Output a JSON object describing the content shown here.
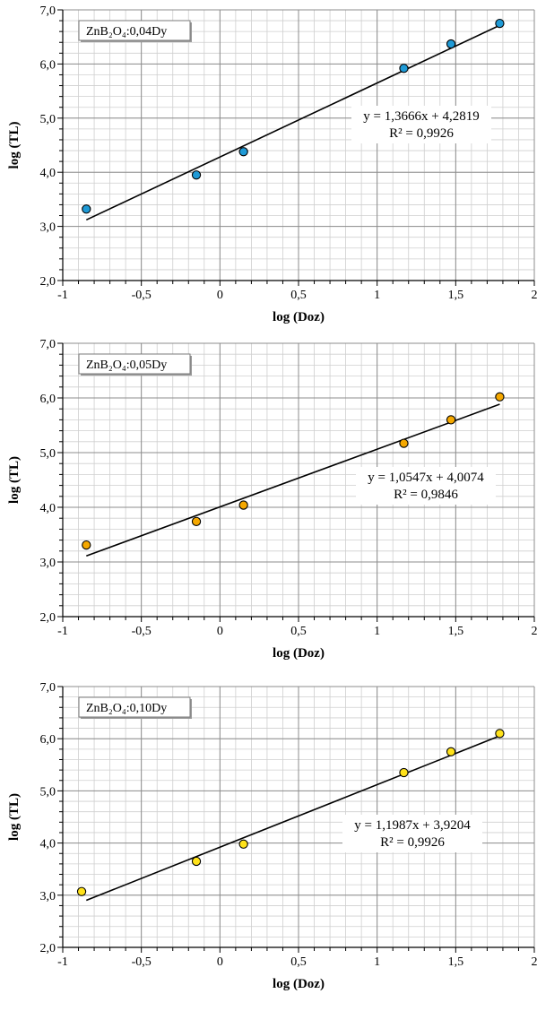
{
  "chart_data": [
    {
      "type": "scatter",
      "title": "",
      "xlabel": "log (Doz)",
      "ylabel": "log (TL)",
      "xlim": [
        -1,
        2
      ],
      "ylim": [
        2.0,
        7.0
      ],
      "x_ticks": [
        "-1",
        "-0,5",
        "0",
        "0,5",
        "1",
        "1,5",
        "2"
      ],
      "y_ticks": [
        "2,0",
        "3,0",
        "4,0",
        "5,0",
        "6,0",
        "7,0"
      ],
      "grid": true,
      "legend": "top-left",
      "series": [
        {
          "name": "ZnB₂O₄:0,04Dy",
          "color": "#1f9ad6",
          "x": [
            -0.85,
            -0.15,
            0.15,
            1.17,
            1.47,
            1.78
          ],
          "y": [
            3.32,
            3.95,
            4.38,
            5.92,
            6.37,
            6.75
          ]
        }
      ],
      "trendline": {
        "slope": 1.3666,
        "intercept": 4.2819,
        "x_range": [
          -0.85,
          1.78
        ]
      },
      "equation": "y = 1,3666x + 4,2819",
      "r2": "R² = 0,9926"
    },
    {
      "type": "scatter",
      "title": "",
      "xlabel": "log (Doz)",
      "ylabel": "log (TL)",
      "xlim": [
        -1,
        2
      ],
      "ylim": [
        2.0,
        7.0
      ],
      "x_ticks": [
        "-1",
        "-0,5",
        "0",
        "0,5",
        "1",
        "1,5",
        "2"
      ],
      "y_ticks": [
        "2,0",
        "3,0",
        "4,0",
        "5,0",
        "6,0",
        "7,0"
      ],
      "grid": true,
      "legend": "top-left",
      "series": [
        {
          "name": "ZnB₂O₄:0,05Dy",
          "color": "#f5a800",
          "x": [
            -0.85,
            -0.15,
            0.15,
            1.17,
            1.47,
            1.78
          ],
          "y": [
            3.31,
            3.74,
            4.04,
            5.17,
            5.6,
            6.02
          ]
        }
      ],
      "trendline": {
        "slope": 1.0547,
        "intercept": 4.0074,
        "x_range": [
          -0.85,
          1.78
        ]
      },
      "equation": "y = 1,0547x + 4,0074",
      "r2": "R² = 0,9846"
    },
    {
      "type": "scatter",
      "title": "",
      "xlabel": "log (Doz)",
      "ylabel": "log (TL)",
      "xlim": [
        -1,
        2
      ],
      "ylim": [
        2.0,
        7.0
      ],
      "x_ticks": [
        "-1",
        "-0,5",
        "0",
        "0,5",
        "1",
        "1,5",
        "2"
      ],
      "y_ticks": [
        "2,0",
        "3,0",
        "4,0",
        "5,0",
        "6,0",
        "7,0"
      ],
      "grid": true,
      "legend": "top-left",
      "series": [
        {
          "name": "ZnB₂O₄:0,10Dy",
          "color": "#ffe21a",
          "x": [
            -0.88,
            -0.15,
            0.15,
            1.17,
            1.47,
            1.78
          ],
          "y": [
            3.07,
            3.65,
            3.98,
            5.35,
            5.75,
            6.1
          ]
        }
      ],
      "trendline": {
        "slope": 1.1987,
        "intercept": 3.9204,
        "x_range": [
          -0.85,
          1.78
        ]
      },
      "equation": "y = 1,1987x + 3,9204",
      "r2": "R² = 0,9926"
    }
  ]
}
